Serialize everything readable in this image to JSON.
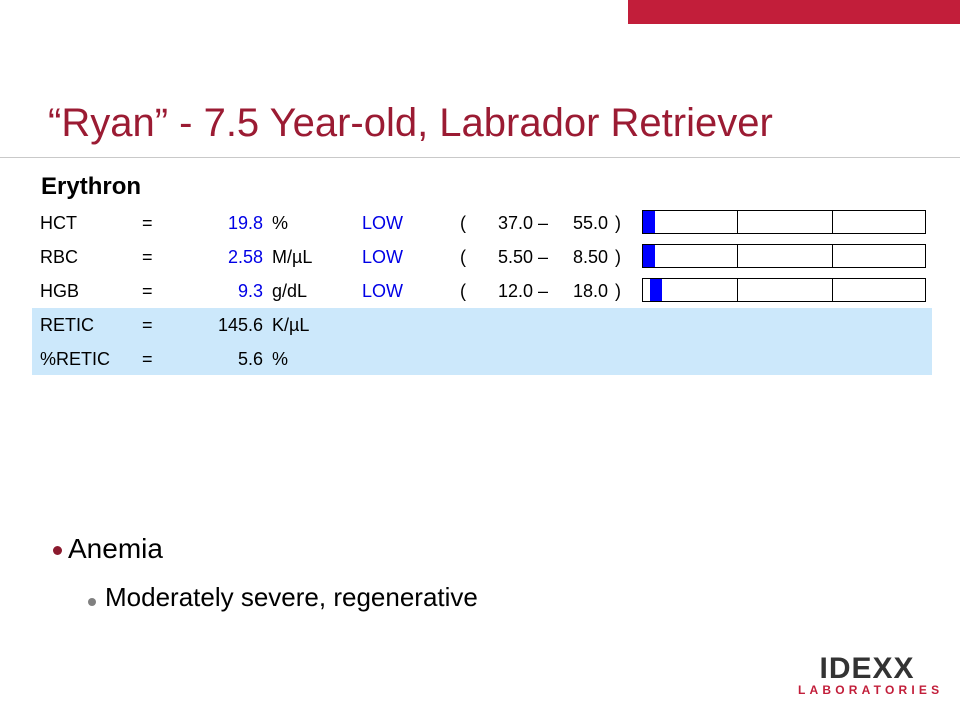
{
  "colors": {
    "accent_bar": "#c21e3a",
    "title": "#9b1b33",
    "low_value": "#0000e6",
    "highlight_rows": "#cce8fb",
    "bullet_1": "#8b1a2e",
    "bullet_2": "#808080",
    "logo_text": "#333333",
    "logo_sub": "#c21e3a"
  },
  "title": "“Ryan” - 7.5 Year-old, Labrador Retriever",
  "section": "Erythron",
  "results": [
    {
      "name": "HCT",
      "eq": "=",
      "value": "19.8",
      "unit": "%",
      "flag": "LOW",
      "range_low": "37.0",
      "range_high": "55.0",
      "level": 0.0
    },
    {
      "name": "RBC",
      "eq": "=",
      "value": "2.58",
      "unit": "M/µL",
      "flag": "LOW",
      "range_low": "5.50",
      "range_high": "8.50",
      "level": 0.0
    },
    {
      "name": "HGB",
      "eq": "=",
      "value": "9.3",
      "unit": "g/dL",
      "flag": "LOW",
      "range_low": "12.0",
      "range_high": "18.0",
      "level": 0.1
    },
    {
      "name": "RETIC",
      "eq": "=",
      "value": "145.6",
      "unit": "K/µL"
    },
    {
      "name": "%RETIC",
      "eq": "=",
      "value": "5.6",
      "unit": "%"
    }
  ],
  "range_punct": {
    "open": "(",
    "dash": "–",
    "close": ")"
  },
  "bullets": {
    "level1": "Anemia",
    "level2": "Moderately severe, regenerative"
  },
  "logo": {
    "word": "IDEXX",
    "subtitle": "LABORATORIES"
  }
}
